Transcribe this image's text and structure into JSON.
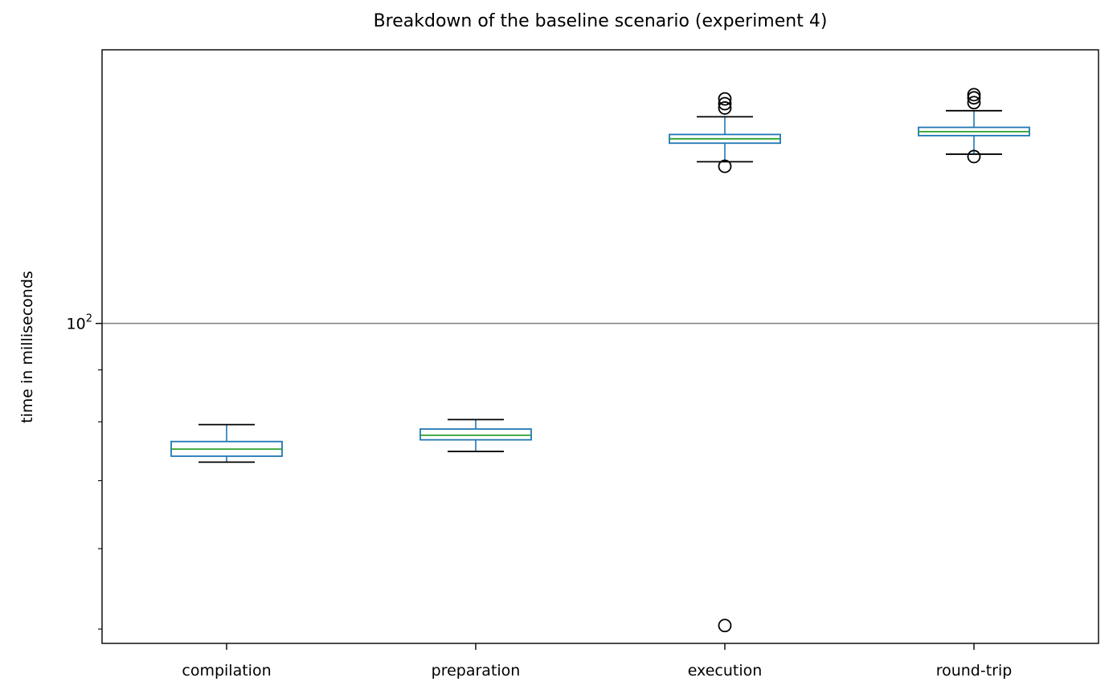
{
  "chart_data": {
    "type": "box",
    "title": "Breakdown of the baseline scenario (experiment 4)",
    "xlabel": "",
    "ylabel": "time in milliseconds",
    "yscale": "log",
    "ylim": [
      48.4,
      186.0
    ],
    "grid": {
      "y_major": true,
      "y_major_value": 100,
      "x": false
    },
    "y_major_tick_label": {
      "base": "10",
      "exponent": "2"
    },
    "categories": [
      "compilation",
      "preparation",
      "execution",
      "round-trip"
    ],
    "boxes": [
      {
        "category": "compilation",
        "whisker_low": 73.0,
        "q1": 74.0,
        "median": 75.2,
        "q3": 76.5,
        "whisker_high": 79.5,
        "outliers": []
      },
      {
        "category": "preparation",
        "whisker_low": 74.8,
        "q1": 76.8,
        "median": 77.6,
        "q3": 78.7,
        "whisker_high": 80.4,
        "outliers": []
      },
      {
        "category": "execution",
        "whisker_low": 144.3,
        "q1": 150.5,
        "median": 152.0,
        "q3": 153.5,
        "whisker_high": 159.8,
        "outliers": [
          142.8,
          163.0,
          164.6,
          166.4,
          50.4
        ]
      },
      {
        "category": "round-trip",
        "whisker_low": 146.8,
        "q1": 153.1,
        "median": 154.5,
        "q3": 156.0,
        "whisker_high": 162.0,
        "outliers": [
          146.0,
          165.0,
          166.8,
          168.0
        ]
      }
    ],
    "colors": {
      "box": "#1f77b4",
      "median": "#2ca02c",
      "whisker": "#000000",
      "grid": "#808080",
      "axes": "#000000"
    }
  }
}
